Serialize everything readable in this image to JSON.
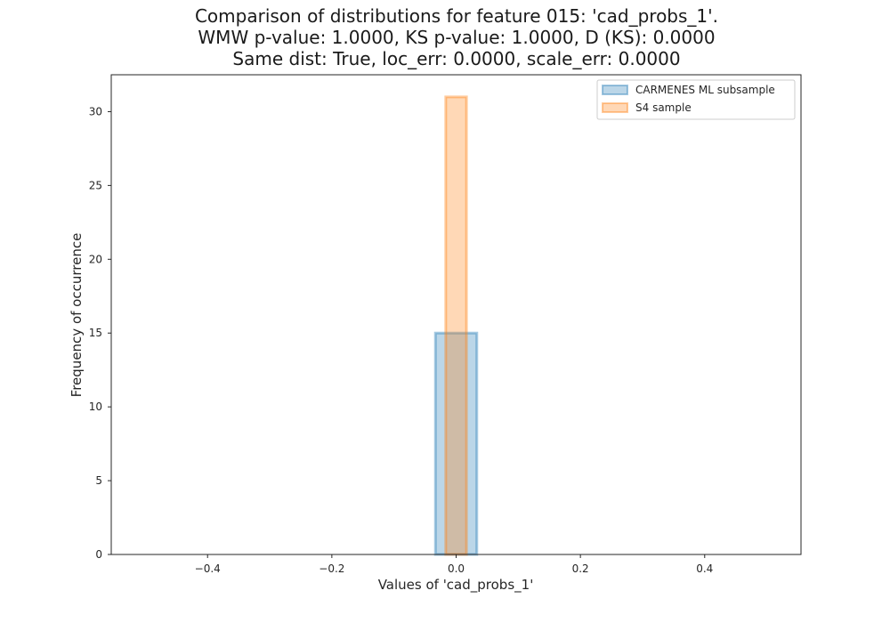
{
  "chart_data": {
    "type": "bar",
    "title_lines": [
      "Comparison of distributions for feature 015: 'cad_probs_1'.",
      "WMW p-value: 1.0000, KS p-value: 1.0000, D (KS): 0.0000",
      "Same dist: True, loc_err: 0.0000, scale_err: 0.0000"
    ],
    "xlabel": "Values of 'cad_probs_1'",
    "ylabel": "Frequency of occurrence",
    "xlim": [
      -0.5,
      0.5
    ],
    "ylim": [
      0,
      32.5
    ],
    "x_ticks": [
      -0.4,
      -0.2,
      0.0,
      0.2,
      0.4
    ],
    "x_tick_labels": [
      "−0.4",
      "−0.2",
      "0.0",
      "0.2",
      "0.4"
    ],
    "y_ticks": [
      0,
      5,
      10,
      15,
      20,
      25,
      30
    ],
    "y_tick_labels": [
      "0",
      "5",
      "10",
      "15",
      "20",
      "25",
      "30"
    ],
    "grid": false,
    "legend_position": "top-right",
    "series": [
      {
        "name": "CARMENES ML subsample",
        "fill": "#1f77b4",
        "edge": "#1f77b4",
        "bins": [
          {
            "x0": -0.5,
            "x1": -0.0333,
            "count": 0
          },
          {
            "x0": -0.0333,
            "x1": 0.0333,
            "count": 15
          },
          {
            "x0": 0.0333,
            "x1": 0.5,
            "count": 0
          }
        ]
      },
      {
        "name": "S4 sample",
        "fill": "#ff7f0e",
        "edge": "#ff7f0e",
        "bins": [
          {
            "x0": -0.5,
            "x1": -0.0167,
            "count": 0
          },
          {
            "x0": -0.0167,
            "x1": 0.0167,
            "count": 31
          },
          {
            "x0": 0.0167,
            "x1": 0.5,
            "count": 0
          }
        ]
      }
    ]
  }
}
